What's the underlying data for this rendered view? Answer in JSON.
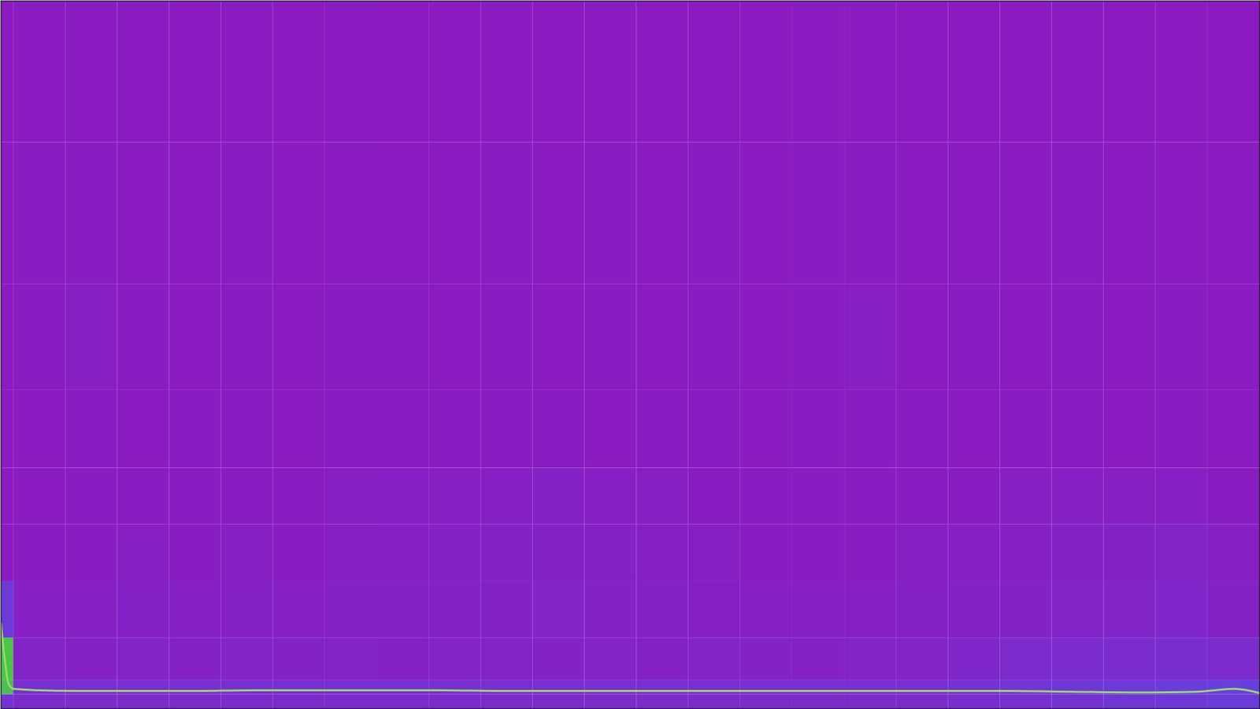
{
  "chart_data": {
    "type": "heatmap",
    "x_edges": [
      0,
      1,
      5.125,
      9.25,
      13.375,
      17.5,
      21.625,
      25.75,
      29.875,
      34,
      38.125,
      42.25,
      46.375,
      50.5,
      54.625,
      58.75,
      62.875,
      67,
      71.125,
      75.25,
      79.375,
      83.5,
      87.625,
      91.75,
      95.875,
      100
    ],
    "y_edges": [
      0,
      2,
      4,
      10,
      18,
      26,
      34,
      45,
      60,
      80,
      100
    ],
    "cells": [
      [
        0.3,
        0.24,
        0.24,
        0.24,
        0.24,
        0.24,
        0.24,
        0.24,
        0.24,
        0.24,
        0.24,
        0.24,
        0.24,
        0.24,
        0.24,
        0.24,
        0.24,
        0.24,
        0.24,
        0.26,
        0.28,
        0.3,
        0.32,
        0.34,
        0.36
      ],
      [
        0.78,
        0.28,
        0.28,
        0.28,
        0.28,
        0.28,
        0.28,
        0.28,
        0.28,
        0.28,
        0.28,
        0.28,
        0.28,
        0.28,
        0.28,
        0.28,
        0.28,
        0.28,
        0.28,
        0.3,
        0.32,
        0.34,
        0.36,
        0.38,
        0.4
      ],
      [
        0.8,
        0.2,
        0.18,
        0.2,
        0.18,
        0.2,
        0.19,
        0.2,
        0.18,
        0.2,
        0.2,
        0.19,
        0.2,
        0.18,
        0.2,
        0.19,
        0.18,
        0.2,
        0.2,
        0.22,
        0.24,
        0.26,
        0.26,
        0.27,
        0.25
      ],
      [
        0.36,
        0.16,
        0.15,
        0.17,
        0.16,
        0.17,
        0.16,
        0.18,
        0.17,
        0.18,
        0.19,
        0.2,
        0.18,
        0.17,
        0.16,
        0.16,
        0.15,
        0.16,
        0.17,
        0.18,
        0.19,
        0.2,
        0.21,
        0.22,
        0.18
      ],
      [
        0.1,
        0.12,
        0.12,
        0.14,
        0.13,
        0.14,
        0.13,
        0.15,
        0.16,
        0.17,
        0.18,
        0.19,
        0.17,
        0.16,
        0.14,
        0.13,
        0.12,
        0.13,
        0.14,
        0.15,
        0.16,
        0.18,
        0.19,
        0.2,
        0.15
      ],
      [
        0.1,
        0.11,
        0.12,
        0.12,
        0.12,
        0.13,
        0.12,
        0.14,
        0.15,
        0.14,
        0.16,
        0.17,
        0.15,
        0.14,
        0.13,
        0.12,
        0.12,
        0.12,
        0.13,
        0.13,
        0.14,
        0.15,
        0.14,
        0.15,
        0.13
      ],
      [
        0.1,
        0.11,
        0.13,
        0.11,
        0.12,
        0.12,
        0.11,
        0.12,
        0.13,
        0.12,
        0.13,
        0.12,
        0.11,
        0.12,
        0.12,
        0.11,
        0.13,
        0.12,
        0.12,
        0.11,
        0.12,
        0.12,
        0.11,
        0.12,
        0.11
      ],
      [
        0.1,
        0.12,
        0.14,
        0.12,
        0.11,
        0.13,
        0.11,
        0.12,
        0.12,
        0.11,
        0.12,
        0.11,
        0.12,
        0.11,
        0.12,
        0.11,
        0.12,
        0.14,
        0.11,
        0.12,
        0.11,
        0.12,
        0.11,
        0.12,
        0.11
      ],
      [
        0.1,
        0.12,
        0.13,
        0.11,
        0.11,
        0.12,
        0.1,
        0.11,
        0.11,
        0.11,
        0.12,
        0.11,
        0.12,
        0.11,
        0.12,
        0.11,
        0.12,
        0.12,
        0.11,
        0.11,
        0.11,
        0.12,
        0.11,
        0.11,
        0.11
      ],
      [
        0.1,
        0.11,
        0.11,
        0.11,
        0.1,
        0.11,
        0.1,
        0.11,
        0.1,
        0.1,
        0.11,
        0.1,
        0.11,
        0.1,
        0.1,
        0.1,
        0.11,
        0.11,
        0.1,
        0.1,
        0.1,
        0.11,
        0.1,
        0.1,
        0.1
      ]
    ],
    "zlim": [
      0,
      1
    ],
    "xlim": [
      0,
      100
    ],
    "ylim": [
      0,
      100
    ],
    "tick_labels": false,
    "series": [
      {
        "type": "line",
        "color": "#9ad86a",
        "x": [
          0,
          0.3,
          0.6,
          1,
          3,
          6,
          10,
          15,
          20,
          25,
          30,
          35,
          40,
          45,
          50,
          55,
          60,
          65,
          70,
          75,
          80,
          85,
          90,
          95,
          98,
          100
        ],
        "values": [
          12,
          7,
          3.5,
          2.8,
          2.6,
          2.5,
          2.5,
          2.5,
          2.6,
          2.6,
          2.6,
          2.6,
          2.5,
          2.5,
          2.5,
          2.5,
          2.5,
          2.5,
          2.5,
          2.5,
          2.5,
          2.4,
          2.3,
          2.4,
          2.8,
          2.2
        ]
      }
    ]
  }
}
